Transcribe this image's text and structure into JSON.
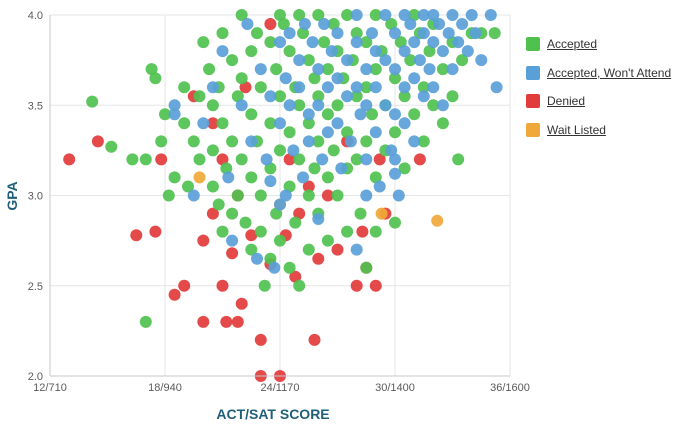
{
  "colors": {
    "accepted": "#4fc14f",
    "accepted_wont_attend": "#5aa0d8",
    "denied": "#e23b3b",
    "wait_listed": "#f0a83a"
  },
  "chart_data": {
    "type": "scatter",
    "xlabel": "ACT/SAT SCORE",
    "ylabel": "GPA",
    "xlim": [
      12,
      36
    ],
    "ylim": [
      2.0,
      4.0
    ],
    "x_ticks": [
      12,
      18,
      24,
      30,
      36
    ],
    "x_tick_labels": [
      "12/710",
      "18/940",
      "24/1170",
      "30/1400",
      "36/1600"
    ],
    "y_ticks": [
      2.0,
      2.5,
      3.0,
      3.5,
      4.0
    ],
    "y_tick_labels": [
      "2.0",
      "2.5",
      "3.0",
      "3.5",
      "4.0"
    ],
    "grid": true,
    "legend": "right",
    "series": [
      {
        "name": "Accepted",
        "color_key": "accepted",
        "points": [
          [
            14.2,
            3.52
          ],
          [
            15.2,
            3.27
          ],
          [
            16.3,
            3.2
          ],
          [
            17.0,
            3.2
          ],
          [
            17.3,
            3.7
          ],
          [
            17.5,
            3.65
          ],
          [
            18.0,
            3.45
          ],
          [
            17.8,
            3.3
          ],
          [
            17.0,
            2.3
          ],
          [
            18.2,
            3.0
          ],
          [
            18.5,
            3.1
          ],
          [
            19.0,
            3.6
          ],
          [
            19.0,
            3.4
          ],
          [
            19.2,
            3.05
          ],
          [
            19.5,
            3.3
          ],
          [
            19.8,
            3.55
          ],
          [
            19.8,
            3.2
          ],
          [
            20.0,
            3.85
          ],
          [
            20.3,
            3.7
          ],
          [
            20.5,
            3.5
          ],
          [
            20.5,
            3.25
          ],
          [
            20.5,
            3.05
          ],
          [
            20.8,
            3.6
          ],
          [
            20.8,
            2.95
          ],
          [
            21.0,
            3.9
          ],
          [
            21.0,
            3.4
          ],
          [
            21.0,
            2.8
          ],
          [
            21.2,
            3.15
          ],
          [
            21.5,
            3.75
          ],
          [
            21.5,
            3.3
          ],
          [
            21.5,
            2.9
          ],
          [
            21.8,
            3.55
          ],
          [
            21.8,
            3.0
          ],
          [
            22.0,
            4.0
          ],
          [
            22.0,
            3.65
          ],
          [
            22.0,
            3.2
          ],
          [
            22.2,
            2.85
          ],
          [
            22.5,
            3.8
          ],
          [
            22.5,
            3.45
          ],
          [
            22.5,
            3.1
          ],
          [
            22.5,
            2.7
          ],
          [
            22.8,
            3.9
          ],
          [
            22.8,
            3.3
          ],
          [
            23.0,
            3.6
          ],
          [
            23.0,
            3.0
          ],
          [
            23.0,
            2.8
          ],
          [
            23.2,
            2.5
          ],
          [
            23.5,
            3.85
          ],
          [
            23.5,
            3.4
          ],
          [
            23.5,
            3.15
          ],
          [
            23.5,
            2.65
          ],
          [
            23.8,
            3.7
          ],
          [
            23.8,
            2.9
          ],
          [
            24.0,
            4.0
          ],
          [
            24.0,
            3.55
          ],
          [
            24.0,
            3.25
          ],
          [
            24.0,
            2.75
          ],
          [
            24.2,
            3.95
          ],
          [
            24.5,
            3.8
          ],
          [
            24.5,
            3.35
          ],
          [
            24.5,
            3.05
          ],
          [
            24.5,
            2.6
          ],
          [
            24.8,
            3.6
          ],
          [
            24.8,
            2.85
          ],
          [
            25.0,
            4.0
          ],
          [
            25.0,
            3.5
          ],
          [
            25.0,
            3.2
          ],
          [
            25.0,
            2.5
          ],
          [
            25.2,
            3.9
          ],
          [
            25.5,
            3.75
          ],
          [
            25.5,
            3.4
          ],
          [
            25.5,
            3.0
          ],
          [
            25.5,
            2.7
          ],
          [
            25.8,
            3.65
          ],
          [
            25.8,
            3.15
          ],
          [
            26.0,
            4.0
          ],
          [
            26.0,
            3.55
          ],
          [
            26.0,
            3.3
          ],
          [
            26.0,
            2.9
          ],
          [
            26.3,
            3.85
          ],
          [
            26.5,
            3.7
          ],
          [
            26.5,
            3.45
          ],
          [
            26.5,
            3.1
          ],
          [
            26.5,
            2.75
          ],
          [
            26.8,
            3.95
          ],
          [
            26.8,
            3.25
          ],
          [
            27.0,
            3.8
          ],
          [
            27.0,
            3.5
          ],
          [
            27.0,
            3.0
          ],
          [
            27.3,
            3.65
          ],
          [
            27.5,
            4.0
          ],
          [
            27.5,
            3.35
          ],
          [
            27.5,
            3.15
          ],
          [
            27.5,
            2.8
          ],
          [
            27.8,
            3.75
          ],
          [
            28.0,
            3.9
          ],
          [
            28.0,
            3.55
          ],
          [
            28.0,
            3.2
          ],
          [
            28.2,
            2.9
          ],
          [
            28.5,
            3.85
          ],
          [
            28.5,
            3.6
          ],
          [
            28.5,
            3.3
          ],
          [
            28.5,
            2.6
          ],
          [
            28.8,
            3.45
          ],
          [
            29.0,
            4.0
          ],
          [
            29.0,
            3.7
          ],
          [
            29.0,
            3.1
          ],
          [
            29.0,
            2.8
          ],
          [
            29.3,
            3.8
          ],
          [
            29.5,
            3.5
          ],
          [
            29.5,
            3.25
          ],
          [
            29.8,
            3.95
          ],
          [
            30.0,
            3.65
          ],
          [
            30.0,
            3.35
          ],
          [
            30.0,
            2.85
          ],
          [
            30.3,
            3.85
          ],
          [
            30.5,
            3.55
          ],
          [
            30.5,
            3.15
          ],
          [
            30.8,
            3.75
          ],
          [
            31.0,
            4.0
          ],
          [
            31.0,
            3.45
          ],
          [
            31.3,
            3.9
          ],
          [
            31.5,
            3.6
          ],
          [
            31.5,
            3.3
          ],
          [
            31.8,
            3.8
          ],
          [
            32.0,
            3.5
          ],
          [
            32.0,
            3.95
          ],
          [
            32.5,
            3.7
          ],
          [
            32.5,
            3.4
          ],
          [
            33.0,
            3.85
          ],
          [
            33.0,
            3.55
          ],
          [
            33.3,
            3.2
          ],
          [
            33.5,
            3.75
          ],
          [
            34.0,
            3.9
          ],
          [
            34.5,
            3.9
          ],
          [
            35.2,
            3.9
          ]
        ]
      },
      {
        "name": "Accepted, Won't Attend",
        "color_key": "accepted_wont_attend",
        "points": [
          [
            18.5,
            3.5
          ],
          [
            18.5,
            3.45
          ],
          [
            19.5,
            3.0
          ],
          [
            20.0,
            3.4
          ],
          [
            20.5,
            3.6
          ],
          [
            21.0,
            3.8
          ],
          [
            21.3,
            3.1
          ],
          [
            21.5,
            2.75
          ],
          [
            22.0,
            3.5
          ],
          [
            22.3,
            3.95
          ],
          [
            22.5,
            3.3
          ],
          [
            22.8,
            2.65
          ],
          [
            23.0,
            3.7
          ],
          [
            23.3,
            3.2
          ],
          [
            23.5,
            3.55
          ],
          [
            23.7,
            2.6
          ],
          [
            24.0,
            3.85
          ],
          [
            24.0,
            3.4
          ],
          [
            24.3,
            3.65
          ],
          [
            24.3,
            3.0
          ],
          [
            24.5,
            3.9
          ],
          [
            24.5,
            3.5
          ],
          [
            24.7,
            3.25
          ],
          [
            25.0,
            3.75
          ],
          [
            25.0,
            3.6
          ],
          [
            25.2,
            3.1
          ],
          [
            25.3,
            3.95
          ],
          [
            25.5,
            3.45
          ],
          [
            25.5,
            3.3
          ],
          [
            25.7,
            3.85
          ],
          [
            26.0,
            3.7
          ],
          [
            26.0,
            3.5
          ],
          [
            26.2,
            3.2
          ],
          [
            26.3,
            3.95
          ],
          [
            26.5,
            3.6
          ],
          [
            26.5,
            3.35
          ],
          [
            26.7,
            3.8
          ],
          [
            27.0,
            3.9
          ],
          [
            27.0,
            3.65
          ],
          [
            27.0,
            3.4
          ],
          [
            27.2,
            3.15
          ],
          [
            27.5,
            3.75
          ],
          [
            27.5,
            3.55
          ],
          [
            27.7,
            3.3
          ],
          [
            28.0,
            4.0
          ],
          [
            28.0,
            3.85
          ],
          [
            28.0,
            3.6
          ],
          [
            28.2,
            3.45
          ],
          [
            28.5,
            3.7
          ],
          [
            28.5,
            3.5
          ],
          [
            28.5,
            3.2
          ],
          [
            28.8,
            3.9
          ],
          [
            29.0,
            3.8
          ],
          [
            29.0,
            3.6
          ],
          [
            29.0,
            3.35
          ],
          [
            29.2,
            3.05
          ],
          [
            29.5,
            4.0
          ],
          [
            29.5,
            3.75
          ],
          [
            29.5,
            3.5
          ],
          [
            29.8,
            3.25
          ],
          [
            30.0,
            3.9
          ],
          [
            30.0,
            3.7
          ],
          [
            30.0,
            3.45
          ],
          [
            30.2,
            3.0
          ],
          [
            30.5,
            4.0
          ],
          [
            30.5,
            3.8
          ],
          [
            30.5,
            3.6
          ],
          [
            30.5,
            3.4
          ],
          [
            30.8,
            3.95
          ],
          [
            31.0,
            3.85
          ],
          [
            31.0,
            3.65
          ],
          [
            31.0,
            3.3
          ],
          [
            31.3,
            3.75
          ],
          [
            31.5,
            4.0
          ],
          [
            31.5,
            3.9
          ],
          [
            31.5,
            3.55
          ],
          [
            31.8,
            3.7
          ],
          [
            32.0,
            4.0
          ],
          [
            32.0,
            3.85
          ],
          [
            32.0,
            3.6
          ],
          [
            32.3,
            3.95
          ],
          [
            32.5,
            3.8
          ],
          [
            32.5,
            3.5
          ],
          [
            32.8,
            3.9
          ],
          [
            33.0,
            4.0
          ],
          [
            33.0,
            3.7
          ],
          [
            33.3,
            3.85
          ],
          [
            33.5,
            3.95
          ],
          [
            33.8,
            3.8
          ],
          [
            34.0,
            4.0
          ],
          [
            34.2,
            3.9
          ],
          [
            34.5,
            3.75
          ],
          [
            35.0,
            4.0
          ],
          [
            35.3,
            3.6
          ],
          [
            30.0,
            3.2
          ],
          [
            30.0,
            3.12
          ],
          [
            28.0,
            2.7
          ],
          [
            28.5,
            3.0
          ],
          [
            24.0,
            2.95
          ],
          [
            23.5,
            3.08
          ],
          [
            26.0,
            2.87
          ]
        ]
      },
      {
        "name": "Denied",
        "color_key": "denied",
        "points": [
          [
            13.0,
            3.2
          ],
          [
            14.5,
            3.3
          ],
          [
            16.5,
            2.78
          ],
          [
            17.5,
            2.8
          ],
          [
            17.8,
            3.2
          ],
          [
            18.5,
            2.45
          ],
          [
            19.0,
            2.5
          ],
          [
            19.5,
            3.55
          ],
          [
            20.0,
            2.3
          ],
          [
            20.0,
            2.75
          ],
          [
            20.5,
            2.9
          ],
          [
            20.5,
            3.4
          ],
          [
            21.0,
            2.5
          ],
          [
            21.0,
            3.2
          ],
          [
            21.2,
            2.3
          ],
          [
            21.5,
            2.68
          ],
          [
            21.8,
            2.3
          ],
          [
            21.8,
            3.0
          ],
          [
            22.0,
            2.4
          ],
          [
            22.2,
            3.6
          ],
          [
            22.5,
            2.78
          ],
          [
            23.0,
            2.0
          ],
          [
            23.0,
            2.2
          ],
          [
            23.5,
            2.62
          ],
          [
            23.5,
            3.95
          ],
          [
            24.0,
            2.0
          ],
          [
            24.3,
            2.78
          ],
          [
            24.5,
            3.2
          ],
          [
            24.8,
            2.55
          ],
          [
            25.0,
            2.9
          ],
          [
            25.5,
            3.05
          ],
          [
            25.8,
            2.2
          ],
          [
            26.0,
            2.65
          ],
          [
            26.5,
            3.0
          ],
          [
            27.0,
            2.7
          ],
          [
            27.5,
            3.3
          ],
          [
            28.0,
            2.5
          ],
          [
            28.3,
            2.8
          ],
          [
            28.5,
            2.6
          ],
          [
            29.0,
            2.5
          ],
          [
            29.2,
            3.2
          ],
          [
            29.5,
            2.9
          ],
          [
            31.3,
            3.2
          ]
        ]
      },
      {
        "name": "Wait Listed",
        "color_key": "wait_listed",
        "points": [
          [
            19.8,
            3.1
          ],
          [
            24.0,
            2.95
          ],
          [
            29.3,
            2.9
          ],
          [
            32.2,
            2.86
          ]
        ]
      }
    ]
  }
}
